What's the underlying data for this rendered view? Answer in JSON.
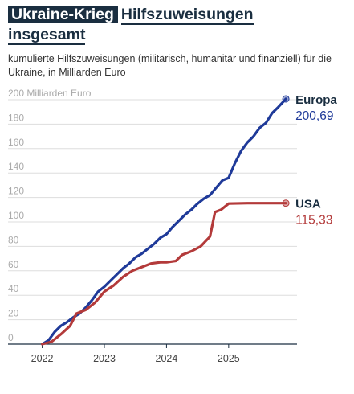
{
  "title": {
    "kicker": "Ukraine-Krieg",
    "line1_rest": "Hilfszuweisungen",
    "line2": "insgesamt"
  },
  "subtitle": "kumulierte Hilfszuweisungen (militärisch, humanitär und finanziell) für die Ukraine, in Milliarden Euro",
  "colors": {
    "europa": "#1f3a99",
    "usa": "#b33a3a",
    "grid": "#dddddd",
    "axis": "#1a2e40",
    "tick_text": "#aaaaaa"
  },
  "chart_data": {
    "type": "line",
    "y_unit_label": "200 Milliarden Euro",
    "ylim": [
      0,
      200
    ],
    "y_ticks": [
      0,
      20,
      40,
      60,
      80,
      100,
      120,
      140,
      160,
      180
    ],
    "x_tick_labels": [
      "2022",
      "2023",
      "2024",
      "2025"
    ],
    "x_ticks": [
      2022.0,
      2023.0,
      2024.0,
      2025.0
    ],
    "xlim": [
      2021.45,
      2026.1
    ],
    "grid": true,
    "series": [
      {
        "name": "Europa",
        "end_label": "200,69",
        "color": "#1f3a99",
        "x": [
          2022.0,
          2022.1,
          2022.2,
          2022.3,
          2022.4,
          2022.5,
          2022.6,
          2022.7,
          2022.8,
          2022.9,
          2023.0,
          2023.1,
          2023.2,
          2023.3,
          2023.4,
          2023.5,
          2023.6,
          2023.7,
          2023.8,
          2023.9,
          2024.0,
          2024.1,
          2024.2,
          2024.3,
          2024.4,
          2024.5,
          2024.6,
          2024.7,
          2024.8,
          2024.9,
          2025.0,
          2025.1,
          2025.2,
          2025.3,
          2025.4,
          2025.5,
          2025.6,
          2025.7,
          2025.8,
          2025.92
        ],
        "values": [
          0,
          3,
          10,
          15,
          18,
          22,
          25,
          30,
          36,
          43,
          47,
          52,
          57,
          62,
          66,
          71,
          74,
          78,
          82,
          87,
          90,
          96,
          101,
          106,
          110,
          115,
          119,
          122,
          128,
          134,
          136,
          148,
          158,
          165,
          170,
          177,
          181,
          189,
          194,
          200.69
        ]
      },
      {
        "name": "USA",
        "end_label": "115,33",
        "color": "#b33a3a",
        "x": [
          2022.0,
          2022.15,
          2022.3,
          2022.45,
          2022.55,
          2022.7,
          2022.85,
          2023.0,
          2023.15,
          2023.3,
          2023.45,
          2023.6,
          2023.75,
          2023.9,
          2024.0,
          2024.15,
          2024.25,
          2024.4,
          2024.55,
          2024.7,
          2024.78,
          2024.88,
          2025.0,
          2025.3,
          2025.6,
          2025.92
        ],
        "values": [
          0,
          2,
          8,
          15,
          25,
          28,
          34,
          43,
          48,
          55,
          60,
          63,
          66,
          67,
          67,
          68,
          73,
          76,
          80,
          88,
          108,
          110,
          115,
          115.33,
          115.33,
          115.33
        ]
      }
    ]
  }
}
